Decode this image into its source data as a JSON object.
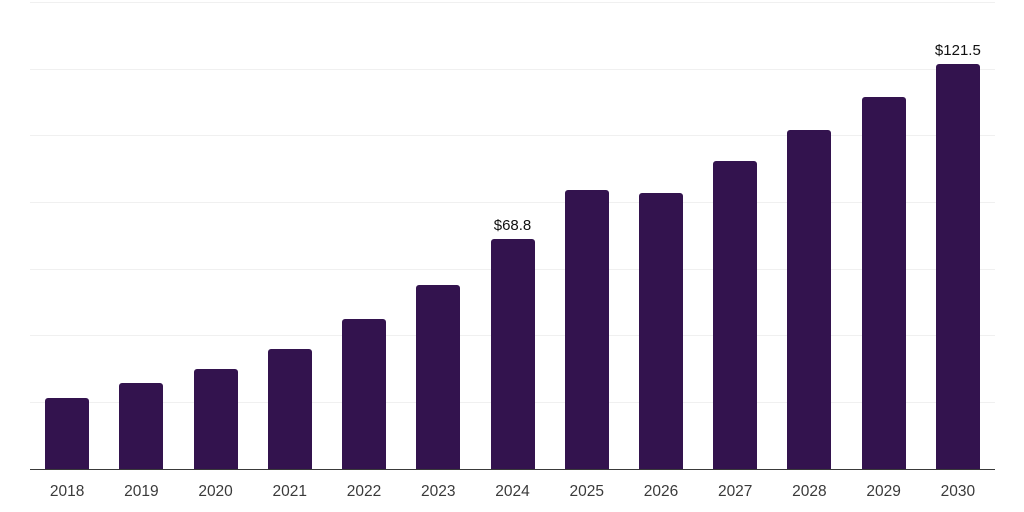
{
  "chart_data": {
    "type": "bar",
    "title": "",
    "xlabel": "",
    "ylabel": "",
    "categories": [
      "2018",
      "2019",
      "2020",
      "2021",
      "2022",
      "2023",
      "2024",
      "2025",
      "2026",
      "2027",
      "2028",
      "2029",
      "2030"
    ],
    "values": [
      21.1,
      25.6,
      30.0,
      36.0,
      44.8,
      55.1,
      68.8,
      83.5,
      82.7,
      92.2,
      101.6,
      111.4,
      121.5
    ],
    "value_labels": {
      "2024": "$68.8",
      "2030": "$121.5"
    },
    "ylim": [
      0,
      140
    ],
    "gridline_step": 20,
    "grid": true,
    "legend": false,
    "colors": {
      "bar": "#33134E",
      "gridline": "#f0f0f0",
      "axis": "#3a3a3a",
      "tick_label": "#3a3a3a",
      "value_label": "#111111",
      "background": "#ffffff"
    }
  }
}
